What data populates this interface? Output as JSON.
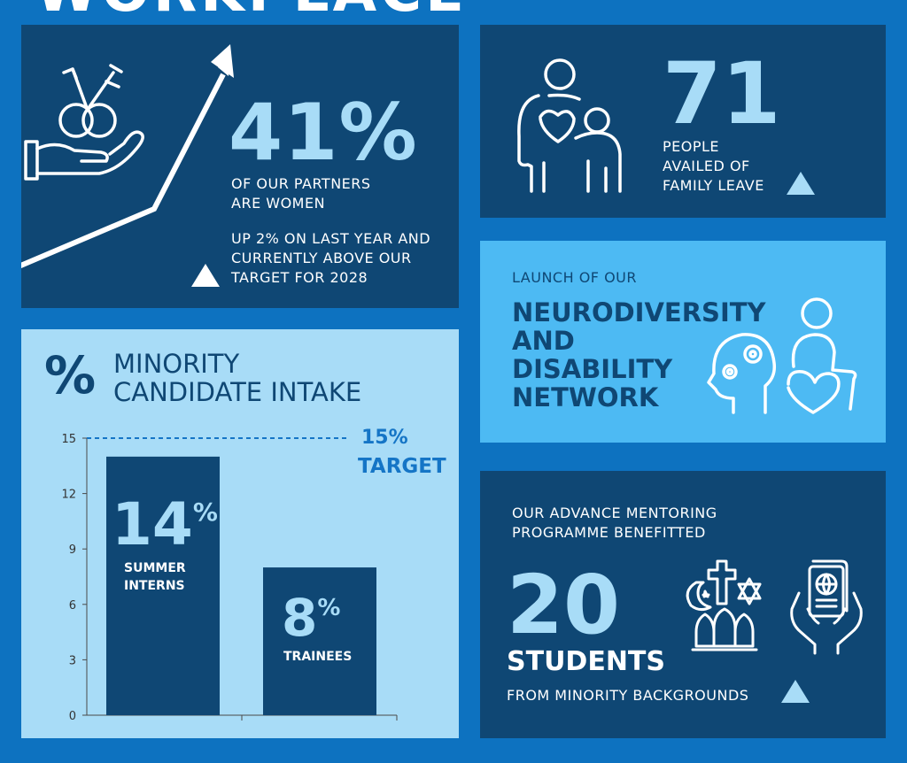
{
  "header": {
    "partial_title": "WORKPLACE"
  },
  "partners": {
    "stat": "41%",
    "line1": "OF OUR PARTNERS",
    "line2": "ARE WOMEN",
    "note1": "UP 2% ON LAST YEAR AND",
    "note2": "CURRENTLY ABOVE OUR",
    "note3": "TARGET FOR 2028"
  },
  "family": {
    "stat": "71",
    "line1": "PEOPLE",
    "line2": "AVAILED OF",
    "line3": "FAMILY LEAVE"
  },
  "network": {
    "pre": "LAUNCH OF OUR",
    "line1": "NEURODIVERSITY",
    "line2": "AND",
    "line3": "DISABILITY",
    "line4": "NETWORK"
  },
  "intake": {
    "symbol": "%",
    "title1": "MINORITY",
    "title2": "CANDIDATE INTAKE",
    "target_value": "15%",
    "target_label": "TARGET",
    "bar1_value": "14",
    "bar1_pct": "%",
    "bar1_label1": "SUMMER",
    "bar1_label2": "INTERNS",
    "bar2_value": "8",
    "bar2_pct": "%",
    "bar2_label": "TRAINEES"
  },
  "chart_data": {
    "type": "bar",
    "categories": [
      "SUMMER INTERNS",
      "TRAINEES"
    ],
    "values": [
      14,
      8
    ],
    "ylim": [
      0,
      15
    ],
    "yticks": [
      "0",
      "3",
      "6",
      "9",
      "12",
      "15"
    ],
    "target": 15,
    "title": "MINORITY CANDIDATE INTAKE"
  },
  "mentoring": {
    "line1": "OUR ADVANCE MENTORING",
    "line2": "PROGRAMME BENEFITTED",
    "stat": "20",
    "label": "STUDENTS",
    "sub": "FROM MINORITY BACKGROUNDS"
  },
  "colors": {
    "page": "#0d72c0",
    "dark": "#0f4774",
    "light": "#a8dcf7",
    "mid": "#4dbaf3"
  }
}
